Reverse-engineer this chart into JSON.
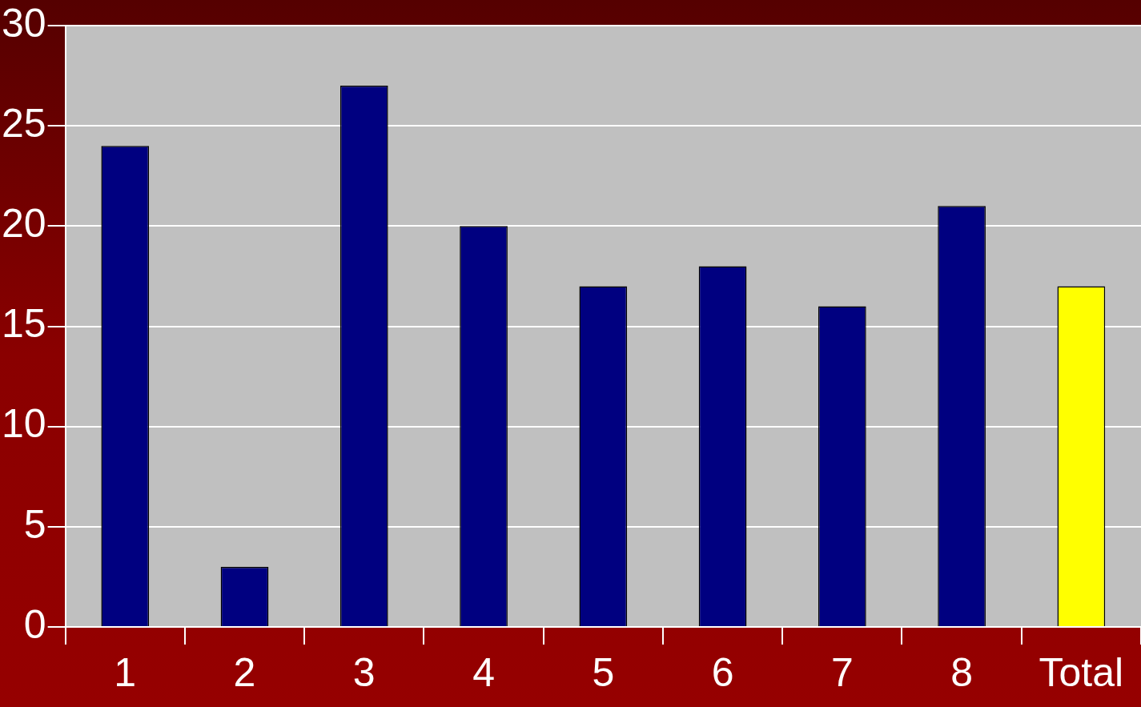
{
  "chart_data": {
    "type": "bar",
    "categories": [
      "1",
      "2",
      "3",
      "4",
      "5",
      "6",
      "7",
      "8",
      "Total"
    ],
    "values": [
      24,
      3,
      27,
      20,
      17,
      18,
      16,
      21,
      17
    ],
    "colors": [
      "#000080",
      "#000080",
      "#000080",
      "#000080",
      "#000080",
      "#000080",
      "#000080",
      "#000080",
      "#ffff00"
    ],
    "ylim": [
      0,
      30
    ],
    "yticks": [
      0,
      5,
      10,
      15,
      20,
      25,
      30
    ],
    "grid": "y",
    "legend": false
  }
}
